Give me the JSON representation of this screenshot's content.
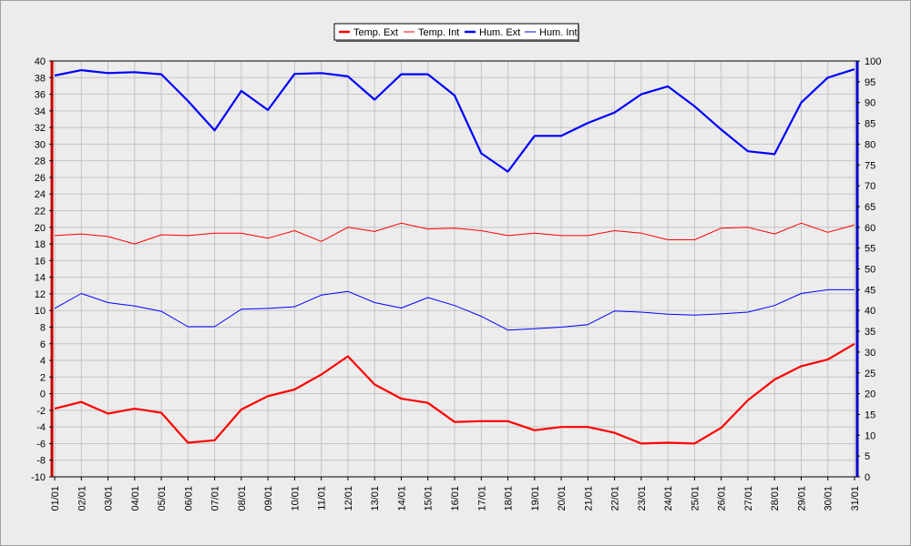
{
  "chart_data": {
    "type": "line",
    "categories": [
      "01/01",
      "02/01",
      "03/01",
      "04/01",
      "05/01",
      "06/01",
      "07/01",
      "08/01",
      "09/01",
      "10/01",
      "11/01",
      "12/01",
      "13/01",
      "14/01",
      "15/01",
      "16/01",
      "17/01",
      "18/01",
      "19/01",
      "20/01",
      "21/01",
      "22/01",
      "23/01",
      "24/01",
      "25/01",
      "26/01",
      "27/01",
      "28/01",
      "29/01",
      "30/01",
      "31/01"
    ],
    "y_left": {
      "range": [
        -10,
        40
      ],
      "step": 2
    },
    "y_right": {
      "range": [
        0,
        100
      ],
      "step": 5
    },
    "grid": true,
    "legend_position": "top-right",
    "series": [
      {
        "name": "Temp. Ext",
        "axis": "left",
        "color": "#ff0000",
        "bold": true,
        "values": [
          -1.8,
          -1.0,
          -2.4,
          -1.8,
          -2.3,
          -5.9,
          -5.6,
          -1.9,
          -0.3,
          0.5,
          2.3,
          4.5,
          1.1,
          -0.6,
          -1.1,
          -3.4,
          -3.3,
          -3.3,
          -4.4,
          -4.0,
          -4.0,
          -4.7,
          -6.0,
          -5.9,
          -6.0,
          -4.1,
          -0.8,
          1.7,
          3.3,
          4.1,
          6.0
        ]
      },
      {
        "name": "Temp. Int",
        "axis": "left",
        "color": "#ff0000",
        "bold": false,
        "values": [
          19.0,
          19.2,
          18.9,
          18.0,
          19.1,
          19.0,
          19.3,
          19.3,
          18.7,
          19.6,
          18.3,
          20.0,
          19.5,
          20.5,
          19.8,
          19.9,
          19.6,
          19.0,
          19.3,
          19.0,
          19.0,
          19.6,
          19.3,
          18.5,
          18.5,
          19.9,
          20.0,
          19.2,
          20.5,
          19.4,
          20.3
        ]
      },
      {
        "name": "Hum. Ext",
        "axis": "right",
        "color": "#0000ff",
        "bold": true,
        "values": [
          96.5,
          97.8,
          97.1,
          97.3,
          96.8,
          90.4,
          83.3,
          92.8,
          88.2,
          96.9,
          97.1,
          96.3,
          90.7,
          96.8,
          96.8,
          91.7,
          77.8,
          73.4,
          82.0,
          82.0,
          85.1,
          87.6,
          92.0,
          93.9,
          89.1,
          83.5,
          78.3,
          77.6,
          90.0,
          96.0,
          98.0
        ]
      },
      {
        "name": "Hum. Int",
        "axis": "right",
        "color": "#0000ff",
        "bold": false,
        "values": [
          40.5,
          44.1,
          41.9,
          41.1,
          39.8,
          36.1,
          36.1,
          40.3,
          40.5,
          40.9,
          43.7,
          44.6,
          41.9,
          40.6,
          43.1,
          41.2,
          38.6,
          35.3,
          35.6,
          36.0,
          36.6,
          39.9,
          39.6,
          39.1,
          38.9,
          39.2,
          39.6,
          41.2,
          44.1,
          45.0,
          45.0
        ]
      }
    ]
  }
}
